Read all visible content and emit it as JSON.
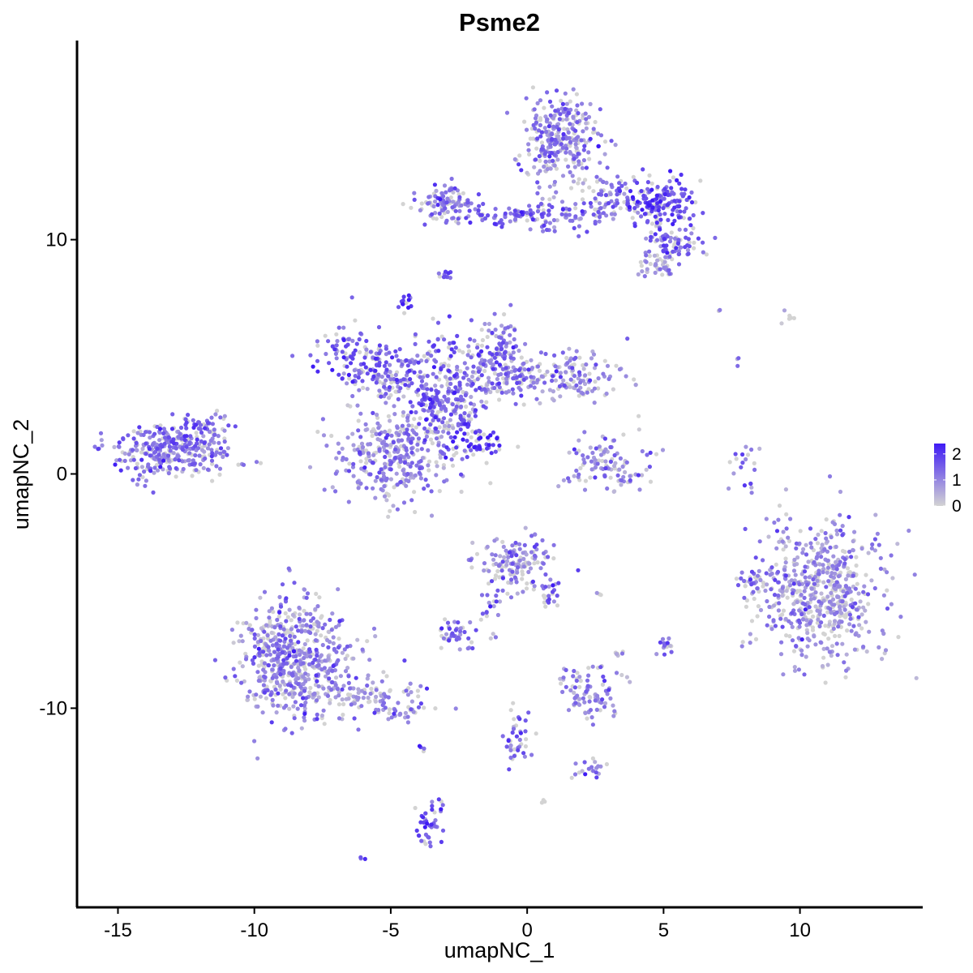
{
  "chart_data": {
    "type": "scatter",
    "title": "Psme2",
    "xlabel": "umapNC_1",
    "ylabel": "umapNC_2",
    "xlim": [
      -16.5,
      14.5
    ],
    "ylim": [
      -18.5,
      18.5
    ],
    "x_ticks": [
      -15,
      -10,
      -5,
      0,
      5,
      10
    ],
    "y_ticks": [
      10,
      0,
      -10
    ],
    "x_tick_labels": [
      "-15",
      "-10",
      "-5",
      "0",
      "5",
      "10"
    ],
    "y_tick_labels": [
      "10",
      "0",
      "-10"
    ],
    "grid": false,
    "legend": {
      "placement": "right",
      "type": "colorbar",
      "ticks": [
        2,
        1,
        0
      ],
      "tick_labels": [
        "2",
        "1",
        "0"
      ],
      "range": [
        0,
        2.4
      ],
      "color_low": "#d3d3d3",
      "color_high": "#3f1bf5"
    },
    "clusters": [
      {
        "cx": -13.0,
        "cy": 1.0,
        "sx": 1.1,
        "sy": 0.6,
        "n": 320,
        "expr": 1.2
      },
      {
        "cx": -11.8,
        "cy": 2.0,
        "sx": 0.5,
        "sy": 0.4,
        "n": 40,
        "expr": 1.2
      },
      {
        "cx": -6.2,
        "cy": 5.2,
        "sx": 0.9,
        "sy": 0.6,
        "n": 120,
        "expr": 1.5
      },
      {
        "cx": -4.6,
        "cy": 4.0,
        "sx": 1.1,
        "sy": 0.5,
        "n": 140,
        "expr": 1.3
      },
      {
        "cx": -3.0,
        "cy": 2.8,
        "sx": 0.7,
        "sy": 0.7,
        "n": 200,
        "expr": 1.5
      },
      {
        "cx": -5.0,
        "cy": 0.7,
        "sx": 1.1,
        "sy": 0.9,
        "n": 320,
        "expr": 1.0
      },
      {
        "cx": -1.2,
        "cy": 5.4,
        "sx": 0.6,
        "sy": 0.7,
        "n": 110,
        "expr": 1.3
      },
      {
        "cx": -0.8,
        "cy": 4.2,
        "sx": 0.9,
        "sy": 0.6,
        "n": 120,
        "expr": 1.2
      },
      {
        "cx": 1.5,
        "cy": 4.2,
        "sx": 0.9,
        "sy": 0.5,
        "n": 130,
        "expr": 0.9
      },
      {
        "cx": -1.9,
        "cy": 1.3,
        "sx": 0.6,
        "sy": 0.4,
        "n": 60,
        "expr": 2.1
      },
      {
        "cx": -4.4,
        "cy": 7.3,
        "sx": 0.15,
        "sy": 0.2,
        "n": 14,
        "expr": 2.0
      },
      {
        "cx": -3.2,
        "cy": 5.5,
        "sx": 0.4,
        "sy": 0.6,
        "n": 30,
        "expr": 1.6
      },
      {
        "cx": -2.9,
        "cy": 11.5,
        "sx": 0.6,
        "sy": 0.45,
        "n": 110,
        "expr": 1.2
      },
      {
        "cx": -0.6,
        "cy": 11.0,
        "sx": 0.7,
        "sy": 0.2,
        "n": 50,
        "expr": 1.5
      },
      {
        "cx": 1.2,
        "cy": 14.3,
        "sx": 0.7,
        "sy": 0.9,
        "n": 300,
        "expr": 1.1
      },
      {
        "cx": 1.3,
        "cy": 11.0,
        "sx": 0.7,
        "sy": 0.4,
        "n": 70,
        "expr": 1.3
      },
      {
        "cx": 3.2,
        "cy": 11.8,
        "sx": 0.6,
        "sy": 0.5,
        "n": 80,
        "expr": 1.2
      },
      {
        "cx": 4.9,
        "cy": 11.6,
        "sx": 0.6,
        "sy": 0.5,
        "n": 160,
        "expr": 1.8
      },
      {
        "cx": 5.4,
        "cy": 9.8,
        "sx": 0.5,
        "sy": 0.4,
        "n": 80,
        "expr": 1.3
      },
      {
        "cx": 4.6,
        "cy": 8.9,
        "sx": 0.4,
        "sy": 0.3,
        "n": 40,
        "expr": 0.9
      },
      {
        "cx": -3.0,
        "cy": 8.5,
        "sx": 0.15,
        "sy": 0.15,
        "n": 10,
        "expr": 1.6
      },
      {
        "cx": 2.9,
        "cy": 0.3,
        "sx": 0.8,
        "sy": 0.6,
        "n": 110,
        "expr": 0.9
      },
      {
        "cx": 8.0,
        "cy": 0.3,
        "sx": 0.25,
        "sy": 0.5,
        "n": 20,
        "expr": 1.3
      },
      {
        "cx": 10.8,
        "cy": -4.9,
        "sx": 1.1,
        "sy": 1.45,
        "n": 600,
        "expr": 0.9
      },
      {
        "cx": 8.2,
        "cy": -4.6,
        "sx": 0.35,
        "sy": 0.4,
        "n": 30,
        "expr": 1.2
      },
      {
        "cx": -0.3,
        "cy": -3.8,
        "sx": 0.7,
        "sy": 0.6,
        "n": 140,
        "expr": 0.9
      },
      {
        "cx": 0.9,
        "cy": -5.2,
        "sx": 0.3,
        "sy": 0.3,
        "n": 20,
        "expr": 1.3
      },
      {
        "cx": -1.3,
        "cy": -5.4,
        "sx": 0.25,
        "sy": 0.5,
        "n": 20,
        "expr": 1.4
      },
      {
        "cx": -2.5,
        "cy": -6.9,
        "sx": 0.4,
        "sy": 0.3,
        "n": 40,
        "expr": 1.2
      },
      {
        "cx": -8.5,
        "cy": -8.0,
        "sx": 1.1,
        "sy": 1.3,
        "n": 600,
        "expr": 1.0
      },
      {
        "cx": -5.8,
        "cy": -9.5,
        "sx": 1.0,
        "sy": 0.4,
        "n": 90,
        "expr": 0.9
      },
      {
        "cx": -4.4,
        "cy": -10.2,
        "sx": 0.4,
        "sy": 0.2,
        "n": 20,
        "expr": 1.0
      },
      {
        "cx": 2.2,
        "cy": -9.3,
        "sx": 0.5,
        "sy": 0.6,
        "n": 90,
        "expr": 1.0
      },
      {
        "cx": 5.1,
        "cy": -7.4,
        "sx": 0.15,
        "sy": 0.2,
        "n": 14,
        "expr": 1.3
      },
      {
        "cx": 3.4,
        "cy": -7.6,
        "sx": 0.12,
        "sy": 0.12,
        "n": 6,
        "expr": 0.6
      },
      {
        "cx": -0.4,
        "cy": -11.2,
        "sx": 0.25,
        "sy": 0.6,
        "n": 40,
        "expr": 1.4
      },
      {
        "cx": 2.3,
        "cy": -12.5,
        "sx": 0.3,
        "sy": 0.2,
        "n": 20,
        "expr": 1.2
      },
      {
        "cx": -3.6,
        "cy": -14.8,
        "sx": 0.25,
        "sy": 0.7,
        "n": 40,
        "expr": 1.6
      },
      {
        "cx": -3.9,
        "cy": -11.8,
        "sx": 0.08,
        "sy": 0.1,
        "n": 4,
        "expr": 1.5
      },
      {
        "cx": -6.1,
        "cy": -16.4,
        "sx": 0.08,
        "sy": 0.05,
        "n": 3,
        "expr": 1.5
      },
      {
        "cx": 0.6,
        "cy": -14.0,
        "sx": 0.06,
        "sy": 0.05,
        "n": 3,
        "expr": 1.0
      },
      {
        "cx": 9.6,
        "cy": 6.7,
        "sx": 0.3,
        "sy": 0.15,
        "n": 6,
        "expr": 0.4
      },
      {
        "cx": 7.0,
        "cy": 6.9,
        "sx": 0.05,
        "sy": 0.05,
        "n": 2,
        "expr": 0.3
      },
      {
        "cx": 7.7,
        "cy": 4.8,
        "sx": 0.05,
        "sy": 0.1,
        "n": 3,
        "expr": 1.3
      },
      {
        "cx": 2.7,
        "cy": -5.1,
        "sx": 0.1,
        "sy": 0.05,
        "n": 3,
        "expr": 1.0
      },
      {
        "cx": -1.2,
        "cy": -6.9,
        "sx": 0.06,
        "sy": 0.06,
        "n": 3,
        "expr": 0.6
      }
    ]
  }
}
